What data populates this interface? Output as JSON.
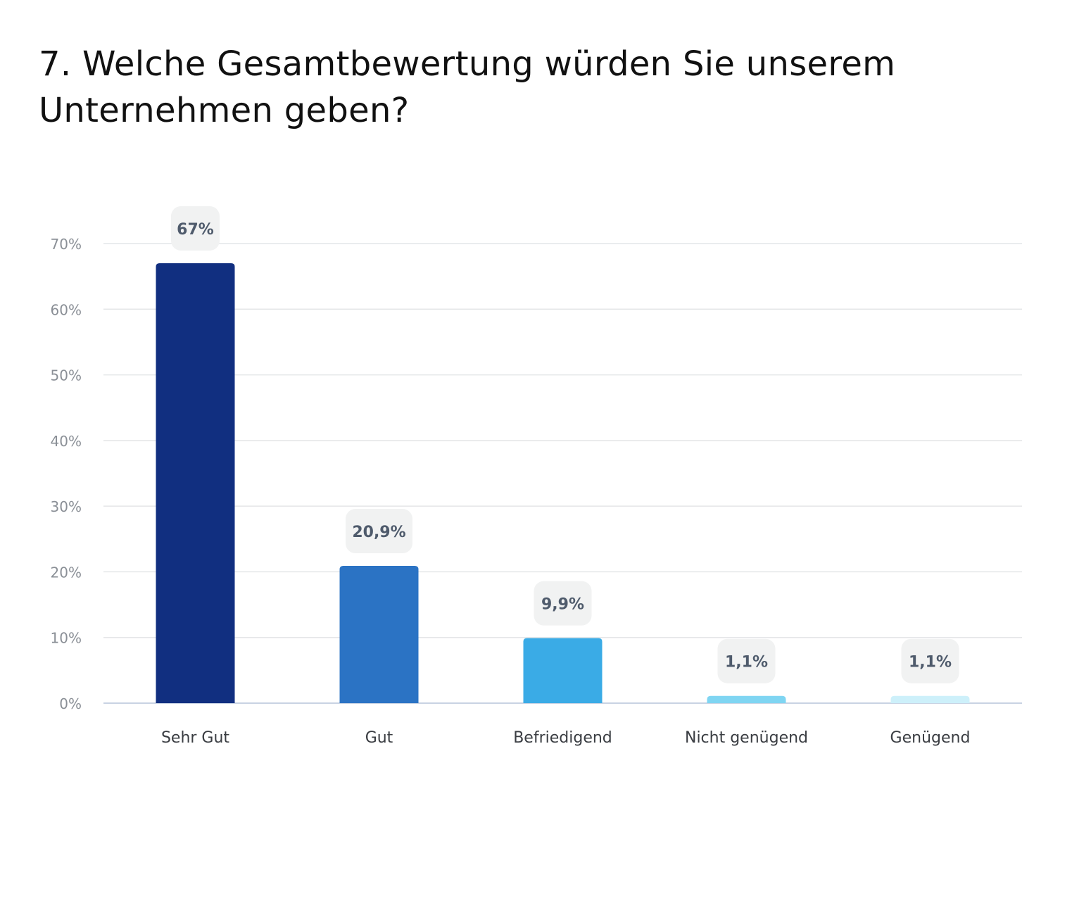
{
  "chart_data": {
    "type": "bar",
    "title": "7. Welche Gesamtbewertung würden Sie unserem Unternehmen geben?",
    "xlabel": "",
    "ylabel": "",
    "categories": [
      "Sehr Gut",
      "Gut",
      "Befriedigend",
      "Nicht genügend",
      "Genügend"
    ],
    "values": [
      67,
      20.9,
      9.9,
      1.1,
      1.1
    ],
    "data_labels": [
      "67%",
      "20,9%",
      "9,9%",
      "1,1%",
      "1,1%"
    ],
    "colors": [
      "#112f80",
      "#2b73c4",
      "#3aabe6",
      "#7fd5f2",
      "#cdf0fa"
    ],
    "ylim": [
      0,
      70
    ],
    "yticks": [
      0,
      10,
      20,
      30,
      40,
      50,
      60,
      70
    ],
    "ytick_labels": [
      "0%",
      "10%",
      "20%",
      "30%",
      "40%",
      "50%",
      "60%",
      "70%"
    ],
    "grid": true,
    "legend": "none"
  }
}
